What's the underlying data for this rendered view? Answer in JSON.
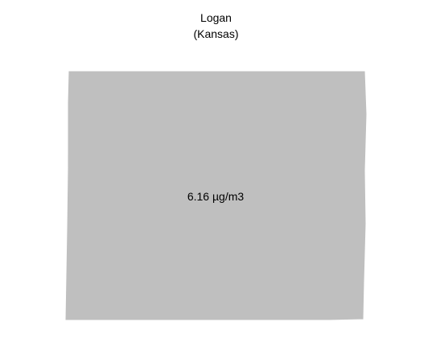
{
  "map": {
    "region_name": "Logan",
    "state_label": "(Kansas)",
    "value_label": "6.16 µg/m3",
    "fill_color": "#bfbfbf",
    "background_color": "#ffffff"
  }
}
